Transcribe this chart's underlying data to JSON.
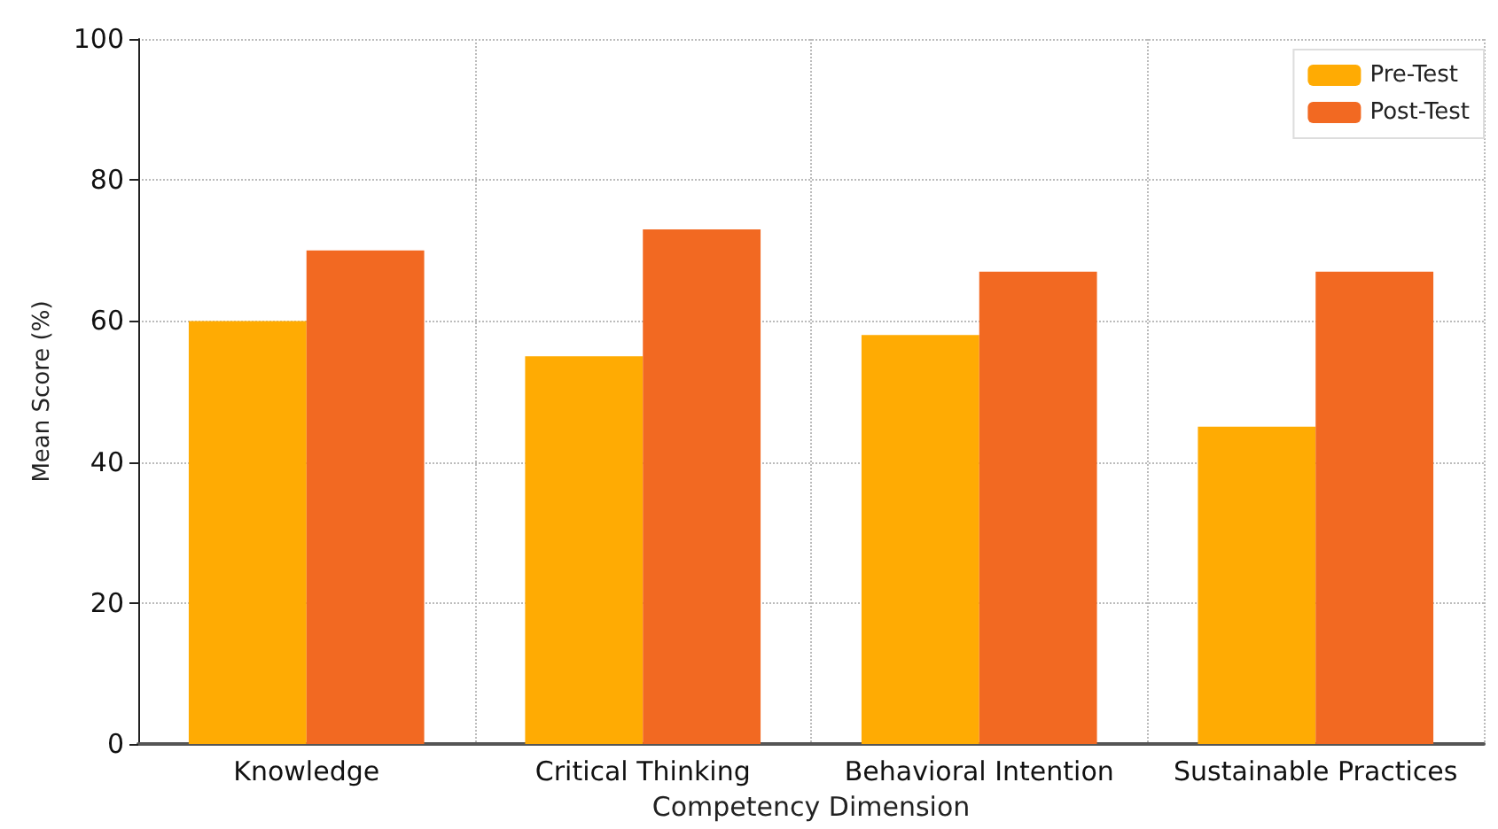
{
  "chart_data": {
    "type": "bar",
    "xlabel": "Competency Dimension",
    "ylabel": "Mean Score (%)",
    "categories": [
      "Knowledge",
      "Critical Thinking",
      "Behavioral Intention",
      "Sustainable Practices"
    ],
    "series": [
      {
        "name": "Pre-Test",
        "color": "#ffab03",
        "values": [
          60,
          55,
          58,
          45
        ]
      },
      {
        "name": "Post-Test",
        "color": "#f26922",
        "values": [
          70,
          73,
          67,
          67
        ]
      }
    ],
    "ylim": [
      0,
      100
    ],
    "yticks": [
      0,
      20,
      40,
      60,
      80,
      100
    ],
    "grid": true,
    "legend": "top right"
  }
}
